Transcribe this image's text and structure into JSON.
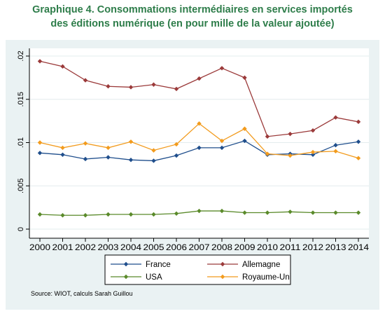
{
  "title_line1": "Graphique 4. Consommations intermédiaires en services importés",
  "title_line2": "des éditions numérique (en pour mille de la valeur ajoutée)",
  "source": "Source: WIOT, calculs Sarah Guillou",
  "chart_data": {
    "type": "line",
    "x": [
      2000,
      2001,
      2002,
      2003,
      2004,
      2005,
      2006,
      2007,
      2008,
      2009,
      2010,
      2011,
      2012,
      2013,
      2014
    ],
    "ylim": [
      0,
      0.02
    ],
    "yticks": [
      0,
      0.005,
      0.01,
      0.015,
      0.02
    ],
    "ytick_labels": [
      "0",
      ".005",
      ".01",
      ".015",
      ".02"
    ],
    "xtick_labels": [
      "2000",
      "2001",
      "2002",
      "2003",
      "2004",
      "2005",
      "2006",
      "2007",
      "2008",
      "2009",
      "2010",
      "2011",
      "2012",
      "2013",
      "2014"
    ],
    "grid": "horizontal",
    "legend_position": "bottom",
    "series": [
      {
        "name": "France",
        "color": "#1f4e8c",
        "values": [
          0.0088,
          0.0086,
          0.0081,
          0.0083,
          0.008,
          0.0079,
          0.0085,
          0.0094,
          0.0094,
          0.0102,
          0.0086,
          0.0087,
          0.0086,
          0.0097,
          0.0101
        ]
      },
      {
        "name": "Allemagne",
        "color": "#9b3a3a",
        "values": [
          0.0194,
          0.0188,
          0.0172,
          0.0165,
          0.0164,
          0.0167,
          0.0162,
          0.0174,
          0.0186,
          0.0175,
          0.0107,
          0.011,
          0.0114,
          0.0129,
          0.0124
        ]
      },
      {
        "name": "USA",
        "color": "#5a8a2a",
        "values": [
          0.0017,
          0.0016,
          0.0016,
          0.0017,
          0.0017,
          0.0017,
          0.0018,
          0.0021,
          0.0021,
          0.0019,
          0.0019,
          0.002,
          0.0019,
          0.0019,
          0.0019
        ]
      },
      {
        "name": "Royaume-Uni",
        "color": "#f29b1d",
        "values": [
          0.01,
          0.0094,
          0.0099,
          0.0094,
          0.0101,
          0.0091,
          0.0098,
          0.0122,
          0.0102,
          0.0116,
          0.0087,
          0.0085,
          0.0089,
          0.009,
          0.0082
        ]
      }
    ]
  }
}
